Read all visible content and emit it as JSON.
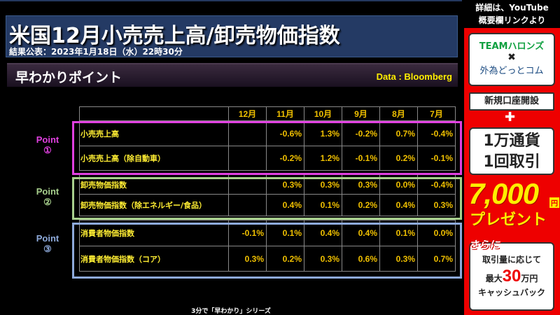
{
  "header": {
    "title": "米国12月小売売上高/卸売物価指数",
    "release": "結果公表：2023年1月18日（水）22時30分"
  },
  "section": {
    "label": "早わかりポイント",
    "source": "Data : Bloomberg"
  },
  "points": [
    {
      "label": "Point",
      "num": "①",
      "color": "#e040e0"
    },
    {
      "label": "Point",
      "num": "②",
      "color": "#a8d08d"
    },
    {
      "label": "Point",
      "num": "③",
      "color": "#8eaadb"
    }
  ],
  "table": {
    "columns": [
      "12月",
      "11月",
      "10月",
      "9月",
      "8月",
      "7月"
    ],
    "rows": [
      {
        "label": "小売売上高",
        "values": [
          "",
          "-0.6%",
          "1.3%",
          "-0.2%",
          "0.7%",
          "-0.4%"
        ]
      },
      {
        "label": "小売売上高（除自動車）",
        "values": [
          "",
          "-0.2%",
          "1.2%",
          "-0.1%",
          "0.2%",
          "-0.1%"
        ]
      },
      {
        "label": "卸売物価指数",
        "values": [
          "",
          "0.3%",
          "0.3%",
          "0.3%",
          "0.0%",
          "-0.4%"
        ]
      },
      {
        "label": "卸売物価指数（除エネルギー/食品）",
        "values": [
          "",
          "0.4%",
          "0.1%",
          "0.2%",
          "0.4%",
          "0.3%"
        ]
      },
      {
        "label": "消費者物価指数",
        "values": [
          "-0.1%",
          "0.1%",
          "0.4%",
          "0.4%",
          "0.1%",
          "0.0%"
        ]
      },
      {
        "label": "消費者物価指数（コア）",
        "values": [
          "0.3%",
          "0.2%",
          "0.3%",
          "0.6%",
          "0.3%",
          "0.7%"
        ]
      }
    ]
  },
  "footer": "3分で「早わかり」シリーズ",
  "ad": {
    "header1": "詳細は、YouTube",
    "header2": "概要欄リンクより",
    "brand1": "TEAMハロンズ",
    "cross": "✖",
    "brand2": "外為どっとコム",
    "open": "新規口座開設",
    "plus": "✚",
    "cond1": "1万通貨",
    "cond2": "1回取引",
    "amount": "7,000",
    "yen": "円",
    "present": "プレゼント",
    "further": "さらに",
    "extra1": "取引量に応じて",
    "max": "最大",
    "max_amount": "30",
    "max_unit": "万円",
    "cashback": "キャッシュバック"
  }
}
